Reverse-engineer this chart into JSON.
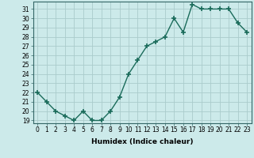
{
  "xlabel": "Humidex (Indice chaleur)",
  "x_values": [
    0,
    1,
    2,
    3,
    4,
    5,
    6,
    7,
    8,
    9,
    10,
    11,
    12,
    13,
    14,
    15,
    16,
    17,
    18,
    19,
    20,
    21,
    22,
    23
  ],
  "y_values": [
    22,
    21,
    20,
    19.5,
    19,
    20,
    19,
    19,
    20,
    21.5,
    24,
    25.5,
    27,
    27.5,
    28,
    30,
    28.5,
    31.5,
    31,
    31,
    31,
    31,
    29.5,
    28.5
  ],
  "line_color": "#1a6b5a",
  "marker": "+",
  "marker_size": 4,
  "marker_lw": 1.2,
  "bg_color": "#cceaea",
  "grid_color": "#aacccc",
  "ylim_min": 18.7,
  "ylim_max": 31.8,
  "yticks": [
    19,
    20,
    21,
    22,
    23,
    24,
    25,
    26,
    27,
    28,
    29,
    30,
    31
  ],
  "xticks": [
    0,
    1,
    2,
    3,
    4,
    5,
    6,
    7,
    8,
    9,
    10,
    11,
    12,
    13,
    14,
    15,
    16,
    17,
    18,
    19,
    20,
    21,
    22,
    23
  ],
  "tick_fontsize": 5.5,
  "label_fontsize": 6.5,
  "line_width": 1.0
}
